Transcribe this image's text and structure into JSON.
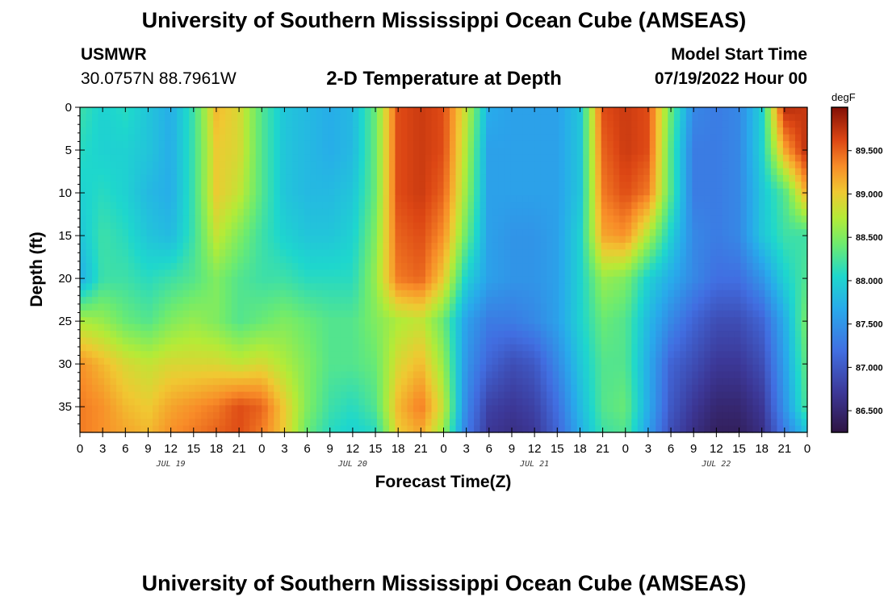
{
  "header": {
    "title": "University of Southern Mississippi Ocean Cube (AMSEAS)",
    "station": "USMWR",
    "coords": "30.0757N  88.7961W",
    "plot_title": "2-D Temperature at Depth",
    "start_label": "Model Start Time",
    "start_value": "07/19/2022 Hour 00"
  },
  "footer": {
    "title": "University of Southern Mississippi Ocean Cube (AMSEAS)"
  },
  "chart_data": {
    "type": "heatmap",
    "title": "2-D Temperature at Depth",
    "xlabel": "Forecast Time(Z)",
    "ylabel": "Depth (ft)",
    "x_range_hours": [
      0,
      96
    ],
    "y_range_ft": [
      0,
      38
    ],
    "y_inverted": true,
    "x_tick_labels": [
      "0",
      "3",
      "6",
      "9",
      "12",
      "15",
      "18",
      "21",
      "0",
      "3",
      "6",
      "9",
      "12",
      "15",
      "18",
      "21",
      "0",
      "3",
      "6",
      "9",
      "12",
      "15",
      "18",
      "21",
      "0",
      "3",
      "6",
      "9",
      "12",
      "15",
      "18",
      "21",
      "0"
    ],
    "date_labels": [
      {
        "hour": 12,
        "label": "JUL 19"
      },
      {
        "hour": 36,
        "label": "JUL 20"
      },
      {
        "hour": 60,
        "label": "JUL 21"
      },
      {
        "hour": 84,
        "label": "JUL 22"
      }
    ],
    "y_ticks": [
      0,
      5,
      10,
      15,
      20,
      25,
      30,
      35
    ],
    "colorbar": {
      "unit": "degF",
      "min": 86.25,
      "max": 90.0,
      "ticks": [
        "86.500",
        "87.000",
        "87.500",
        "88.000",
        "88.500",
        "89.000",
        "89.500"
      ]
    },
    "depths_ft": [
      0,
      5,
      10,
      15,
      20,
      25,
      30,
      35,
      38
    ],
    "hours": [
      0,
      3,
      6,
      9,
      12,
      15,
      18,
      21,
      24,
      27,
      30,
      33,
      36,
      39,
      42,
      45,
      48,
      51,
      54,
      57,
      60,
      63,
      66,
      69,
      72,
      75,
      78,
      81,
      84,
      87,
      90,
      93,
      96
    ],
    "temperature_degF": [
      [
        88.2,
        88.0,
        88.1,
        87.9,
        87.7,
        88.2,
        89.1,
        88.9,
        88.3,
        87.9,
        87.8,
        87.7,
        87.8,
        88.4,
        89.6,
        89.7,
        89.6,
        88.8,
        87.7,
        87.6,
        87.6,
        87.6,
        87.9,
        89.6,
        89.7,
        89.6,
        88.4,
        87.4,
        87.3,
        87.4,
        88.0,
        89.8,
        89.7
      ],
      [
        88.1,
        88.0,
        88.0,
        87.9,
        87.7,
        88.2,
        89.0,
        88.9,
        88.3,
        87.9,
        87.8,
        87.7,
        87.8,
        88.4,
        89.6,
        89.7,
        89.6,
        88.7,
        87.6,
        87.6,
        87.6,
        87.6,
        87.9,
        89.5,
        89.7,
        89.6,
        88.3,
        87.3,
        87.3,
        87.4,
        88.0,
        89.2,
        89.8
      ],
      [
        88.0,
        88.1,
        88.0,
        87.8,
        87.7,
        88.2,
        89.0,
        88.8,
        88.3,
        87.9,
        87.8,
        87.8,
        87.9,
        88.4,
        89.6,
        89.7,
        89.5,
        88.6,
        87.6,
        87.6,
        87.6,
        87.6,
        87.9,
        89.4,
        89.6,
        89.4,
        88.3,
        87.3,
        87.3,
        87.4,
        87.9,
        88.3,
        89.2
      ],
      [
        87.9,
        88.2,
        88.1,
        87.9,
        87.8,
        88.2,
        88.8,
        88.5,
        88.2,
        88.0,
        87.9,
        87.9,
        88.0,
        88.5,
        89.5,
        89.6,
        89.3,
        88.4,
        87.6,
        87.5,
        87.5,
        87.6,
        88.0,
        89.2,
        89.3,
        88.7,
        88.0,
        87.4,
        87.3,
        87.4,
        87.9,
        88.2,
        88.2
      ],
      [
        87.7,
        88.2,
        88.2,
        88.1,
        88.2,
        88.3,
        88.5,
        88.3,
        88.2,
        88.2,
        88.1,
        88.1,
        88.1,
        88.6,
        89.4,
        89.5,
        89.0,
        88.0,
        87.6,
        87.5,
        87.5,
        87.6,
        88.0,
        88.6,
        88.5,
        88.0,
        87.7,
        87.4,
        87.2,
        87.2,
        87.5,
        88.0,
        88.3
      ],
      [
        88.7,
        88.6,
        88.4,
        88.3,
        88.5,
        88.6,
        88.5,
        88.3,
        88.4,
        88.5,
        88.4,
        88.3,
        88.3,
        88.5,
        88.7,
        88.8,
        88.4,
        87.6,
        87.3,
        87.3,
        87.4,
        87.6,
        88.0,
        88.4,
        88.3,
        87.8,
        87.4,
        87.1,
        86.9,
        86.9,
        87.1,
        87.7,
        88.5
      ],
      [
        89.3,
        89.1,
        88.9,
        88.8,
        88.9,
        88.9,
        88.9,
        88.8,
        88.9,
        88.7,
        88.5,
        88.3,
        88.3,
        88.4,
        88.9,
        89.1,
        88.6,
        87.5,
        87.1,
        86.9,
        87.0,
        87.4,
        87.9,
        88.3,
        88.3,
        87.7,
        87.1,
        86.9,
        86.7,
        86.7,
        86.9,
        87.6,
        88.4
      ],
      [
        89.4,
        89.3,
        89.1,
        89.0,
        89.2,
        89.3,
        89.4,
        89.6,
        89.5,
        89.0,
        88.5,
        88.2,
        88.1,
        88.3,
        89.1,
        89.4,
        88.8,
        87.4,
        86.8,
        86.7,
        86.8,
        87.2,
        87.8,
        88.3,
        88.4,
        87.7,
        87.0,
        86.7,
        86.5,
        86.5,
        86.7,
        87.5,
        88.3
      ],
      [
        89.4,
        89.3,
        89.2,
        89.1,
        89.3,
        89.4,
        89.5,
        89.6,
        89.4,
        89.0,
        88.4,
        88.1,
        88.0,
        88.1,
        89.0,
        89.2,
        88.6,
        87.3,
        86.7,
        86.6,
        86.7,
        87.1,
        87.7,
        88.2,
        88.3,
        87.6,
        86.9,
        86.6,
        86.4,
        86.4,
        86.6,
        87.3,
        87.9
      ]
    ]
  }
}
